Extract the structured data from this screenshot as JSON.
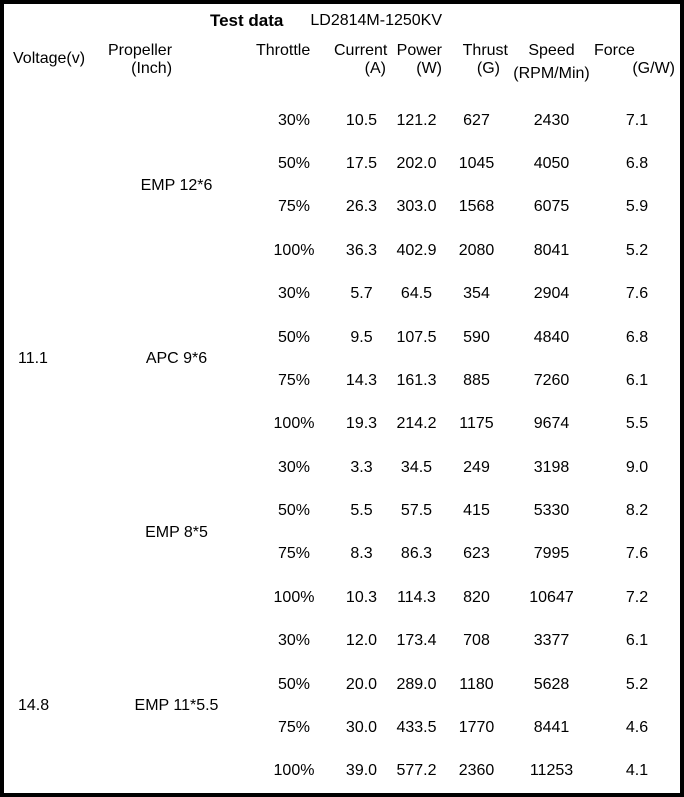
{
  "table": {
    "title": "Test data",
    "model": "LD2814M-1250KV",
    "headers": [
      {
        "line1": "Voltage(v)",
        "line2": ""
      },
      {
        "line1": "Propeller",
        "line2": "(Inch)"
      },
      {
        "line1": "Throttle",
        "line2": ""
      },
      {
        "line1": "Current",
        "line2": "(A)"
      },
      {
        "line1": "Power",
        "line2": "(W)"
      },
      {
        "line1": "Thrust",
        "line2": "(G)"
      },
      {
        "line1": "Speed",
        "line2": "(RPM/Min)"
      },
      {
        "line1": "Force",
        "line2": "(G/W)"
      }
    ],
    "voltage_groups": [
      {
        "voltage": "11.1",
        "propellers": [
          {
            "name": "EMP 12*6",
            "rows": [
              {
                "throttle": "30%",
                "current": "10.5",
                "power": "121.2",
                "thrust": "627",
                "speed": "2430",
                "force": "7.1"
              },
              {
                "throttle": "50%",
                "current": "17.5",
                "power": "202.0",
                "thrust": "1045",
                "speed": "4050",
                "force": "6.8"
              },
              {
                "throttle": "75%",
                "current": "26.3",
                "power": "303.0",
                "thrust": "1568",
                "speed": "6075",
                "force": "5.9"
              },
              {
                "throttle": "100%",
                "current": "36.3",
                "power": "402.9",
                "thrust": "2080",
                "speed": "8041",
                "force": "5.2"
              }
            ]
          },
          {
            "name": "APC 9*6",
            "rows": [
              {
                "throttle": "30%",
                "current": "5.7",
                "power": "64.5",
                "thrust": "354",
                "speed": "2904",
                "force": "7.6"
              },
              {
                "throttle": "50%",
                "current": "9.5",
                "power": "107.5",
                "thrust": "590",
                "speed": "4840",
                "force": "6.8"
              },
              {
                "throttle": "75%",
                "current": "14.3",
                "power": "161.3",
                "thrust": "885",
                "speed": "7260",
                "force": "6.1"
              },
              {
                "throttle": "100%",
                "current": "19.3",
                "power": "214.2",
                "thrust": "1175",
                "speed": "9674",
                "force": "5.5"
              }
            ]
          },
          {
            "name": "EMP 8*5",
            "rows": [
              {
                "throttle": "30%",
                "current": "3.3",
                "power": "34.5",
                "thrust": "249",
                "speed": "3198",
                "force": "9.0"
              },
              {
                "throttle": "50%",
                "current": "5.5",
                "power": "57.5",
                "thrust": "415",
                "speed": "5330",
                "force": "8.2"
              },
              {
                "throttle": "75%",
                "current": "8.3",
                "power": "86.3",
                "thrust": "623",
                "speed": "7995",
                "force": "7.6"
              },
              {
                "throttle": "100%",
                "current": "10.3",
                "power": "114.3",
                "thrust": "820",
                "speed": "10647",
                "force": "7.2"
              }
            ]
          }
        ]
      },
      {
        "voltage": "14.8",
        "propellers": [
          {
            "name": "EMP 11*5.5",
            "rows": [
              {
                "throttle": "30%",
                "current": "12.0",
                "power": "173.4",
                "thrust": "708",
                "speed": "3377",
                "force": "6.1"
              },
              {
                "throttle": "50%",
                "current": "20.0",
                "power": "289.0",
                "thrust": "1180",
                "speed": "5628",
                "force": "5.2"
              },
              {
                "throttle": "75%",
                "current": "30.0",
                "power": "433.5",
                "thrust": "1770",
                "speed": "8441",
                "force": "4.6"
              },
              {
                "throttle": "100%",
                "current": "39.0",
                "power": "577.2",
                "thrust": "2360",
                "speed": "11253",
                "force": "4.1"
              }
            ]
          }
        ]
      }
    ]
  }
}
